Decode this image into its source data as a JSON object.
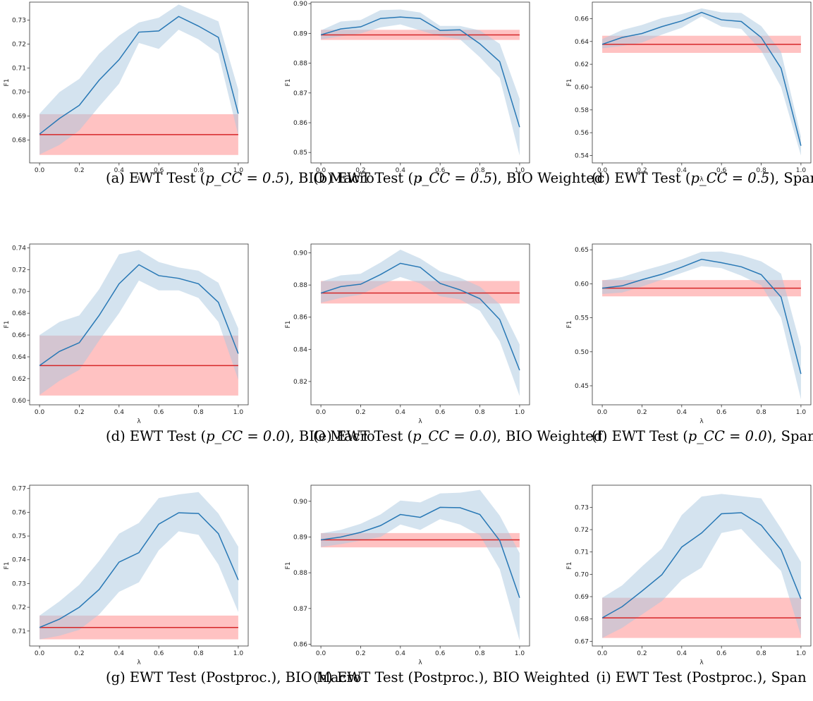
{
  "colors": {
    "series": "#2878b5",
    "band": "#a9c8e0",
    "baseline": "#d62728",
    "baseline_band": "#ff9a9a",
    "frame": "#333333"
  },
  "chart_data": [
    {
      "type": "line",
      "caption_prefix": "(a) EWT Test (",
      "caption_math": "p_CC = 0.5",
      "caption_suffix": "), BIO Macro",
      "xlabel": "λ",
      "ylabel": "F1",
      "xlim": [
        -0.05,
        1.05
      ],
      "ylim": [
        0.6705,
        0.7375
      ],
      "xticks": [
        0.0,
        0.2,
        0.4,
        0.6,
        0.8,
        1.0
      ],
      "xtick_labels": [
        "0.0",
        "0.2",
        "0.4",
        "0.6",
        "0.8",
        "1.0"
      ],
      "yticks": [
        0.68,
        0.69,
        0.7,
        0.71,
        0.72,
        0.73
      ],
      "ytick_labels": [
        "0.68",
        "0.69",
        "0.70",
        "0.71",
        "0.72",
        "0.73"
      ],
      "x": [
        0.0,
        0.1,
        0.2,
        0.3,
        0.4,
        0.5,
        0.6,
        0.7,
        0.8,
        0.9,
        1.0
      ],
      "y": [
        0.6825,
        0.689,
        0.6945,
        0.705,
        0.7135,
        0.725,
        0.7255,
        0.7315,
        0.7275,
        0.7228,
        0.691
      ],
      "y_lower": [
        0.674,
        0.678,
        0.684,
        0.694,
        0.7035,
        0.7205,
        0.718,
        0.726,
        0.722,
        0.716,
        0.682
      ],
      "y_upper": [
        0.691,
        0.7,
        0.7055,
        0.716,
        0.7235,
        0.729,
        0.731,
        0.7365,
        0.733,
        0.7295,
        0.701
      ],
      "baseline": 0.6823,
      "baseline_lower": 0.6738,
      "baseline_upper": 0.6908
    },
    {
      "type": "line",
      "caption_prefix": "(b) EWT Test (",
      "caption_math": "p_CC = 0.5",
      "caption_suffix": "), BIO Weighted",
      "xlabel": "λ",
      "ylabel": "F1",
      "xlim": [
        -0.05,
        1.05
      ],
      "ylim": [
        0.8465,
        0.9005
      ],
      "xticks": [
        0.0,
        0.2,
        0.4,
        0.6,
        0.8,
        1.0
      ],
      "xtick_labels": [
        "0.0",
        "0.2",
        "0.4",
        "0.6",
        "0.8",
        "1.0"
      ],
      "yticks": [
        0.85,
        0.86,
        0.87,
        0.88,
        0.89,
        0.9
      ],
      "ytick_labels": [
        "0.85",
        "0.86",
        "0.87",
        "0.88",
        "0.89",
        "0.90"
      ],
      "x": [
        0.0,
        0.1,
        0.2,
        0.3,
        0.4,
        0.5,
        0.6,
        0.7,
        0.8,
        0.9,
        1.0
      ],
      "y": [
        0.8895,
        0.8915,
        0.8922,
        0.895,
        0.8955,
        0.895,
        0.891,
        0.8912,
        0.8865,
        0.8805,
        0.8585
      ],
      "y_lower": [
        0.888,
        0.889,
        0.89,
        0.892,
        0.893,
        0.891,
        0.889,
        0.888,
        0.882,
        0.875,
        0.849
      ],
      "y_upper": [
        0.891,
        0.894,
        0.8945,
        0.8978,
        0.898,
        0.897,
        0.8925,
        0.8925,
        0.891,
        0.8865,
        0.868
      ],
      "baseline": 0.8895,
      "baseline_lower": 0.8878,
      "baseline_upper": 0.8912
    },
    {
      "type": "line",
      "caption_prefix": "(c) EWT Test (",
      "caption_math": "p_CC = 0.5",
      "caption_suffix": "), Span",
      "xlabel": "λ",
      "ylabel": "F1",
      "xlim": [
        -0.05,
        1.05
      ],
      "ylim": [
        0.5335,
        0.6745
      ],
      "xticks": [
        0.0,
        0.2,
        0.4,
        0.6,
        0.8,
        1.0
      ],
      "xtick_labels": [
        "0.0",
        "0.2",
        "0.4",
        "0.6",
        "0.8",
        "1.0"
      ],
      "yticks": [
        0.54,
        0.56,
        0.58,
        0.6,
        0.62,
        0.64,
        0.66
      ],
      "ytick_labels": [
        "0.54",
        "0.56",
        "0.58",
        "0.60",
        "0.62",
        "0.64",
        "0.66"
      ],
      "x": [
        0.0,
        0.1,
        0.2,
        0.3,
        0.4,
        0.5,
        0.6,
        0.7,
        0.8,
        0.9,
        1.0
      ],
      "y": [
        0.6375,
        0.6435,
        0.647,
        0.653,
        0.658,
        0.6655,
        0.659,
        0.6575,
        0.6435,
        0.6165,
        0.5485
      ],
      "y_lower": [
        0.634,
        0.636,
        0.639,
        0.646,
        0.652,
        0.662,
        0.653,
        0.651,
        0.632,
        0.6,
        0.54
      ],
      "y_upper": [
        0.642,
        0.65,
        0.6545,
        0.6605,
        0.664,
        0.669,
        0.6655,
        0.665,
        0.6535,
        0.631,
        0.5565
      ],
      "baseline": 0.6375,
      "baseline_lower": 0.63,
      "baseline_upper": 0.645
    },
    {
      "type": "line",
      "caption_prefix": "(d) EWT Test (",
      "caption_math": "p_CC = 0.0",
      "caption_suffix": "), BIO Macro",
      "xlabel": "λ",
      "ylabel": "F1",
      "xlim": [
        -0.05,
        1.05
      ],
      "ylim": [
        0.596,
        0.7435
      ],
      "xticks": [
        0.0,
        0.2,
        0.4,
        0.6,
        0.8,
        1.0
      ],
      "xtick_labels": [
        "0.0",
        "0.2",
        "0.4",
        "0.6",
        "0.8",
        "1.0"
      ],
      "yticks": [
        0.6,
        0.62,
        0.64,
        0.66,
        0.68,
        0.7,
        0.72,
        0.74
      ],
      "ytick_labels": [
        "0.60",
        "0.62",
        "0.64",
        "0.66",
        "0.68",
        "0.70",
        "0.72",
        "0.74"
      ],
      "x": [
        0.0,
        0.1,
        0.2,
        0.3,
        0.4,
        0.5,
        0.6,
        0.7,
        0.8,
        0.9,
        1.0
      ],
      "y": [
        0.632,
        0.645,
        0.653,
        0.678,
        0.707,
        0.7245,
        0.7145,
        0.712,
        0.707,
        0.69,
        0.643
      ],
      "y_lower": [
        0.605,
        0.618,
        0.628,
        0.655,
        0.68,
        0.71,
        0.701,
        0.701,
        0.694,
        0.672,
        0.619
      ],
      "y_upper": [
        0.66,
        0.672,
        0.678,
        0.702,
        0.734,
        0.738,
        0.727,
        0.722,
        0.719,
        0.708,
        0.666
      ],
      "baseline": 0.632,
      "baseline_lower": 0.6045,
      "baseline_upper": 0.6595
    },
    {
      "type": "line",
      "caption_prefix": "(e) EWT Test (",
      "caption_math": "p_CC = 0.0",
      "caption_suffix": "), BIO Weighted",
      "xlabel": "λ",
      "ylabel": "F1",
      "xlim": [
        -0.05,
        1.05
      ],
      "ylim": [
        0.8055,
        0.9055
      ],
      "xticks": [
        0.0,
        0.2,
        0.4,
        0.6,
        0.8,
        1.0
      ],
      "xtick_labels": [
        "0.0",
        "0.2",
        "0.4",
        "0.6",
        "0.8",
        "1.0"
      ],
      "yticks": [
        0.82,
        0.84,
        0.86,
        0.88,
        0.9
      ],
      "ytick_labels": [
        "0.82",
        "0.84",
        "0.86",
        "0.88",
        "0.90"
      ],
      "x": [
        0.0,
        0.1,
        0.2,
        0.3,
        0.4,
        0.5,
        0.6,
        0.7,
        0.8,
        0.9,
        1.0
      ],
      "y": [
        0.875,
        0.879,
        0.8805,
        0.8865,
        0.8935,
        0.891,
        0.881,
        0.877,
        0.8715,
        0.8585,
        0.827
      ],
      "y_lower": [
        0.869,
        0.872,
        0.874,
        0.88,
        0.885,
        0.881,
        0.873,
        0.871,
        0.864,
        0.845,
        0.811
      ],
      "y_upper": [
        0.882,
        0.886,
        0.887,
        0.894,
        0.902,
        0.8965,
        0.8885,
        0.8845,
        0.879,
        0.868,
        0.843
      ],
      "baseline": 0.875,
      "baseline_lower": 0.8685,
      "baseline_upper": 0.8825
    },
    {
      "type": "line",
      "caption_prefix": "(f) EWT Test (",
      "caption_math": "p_CC = 0.0",
      "caption_suffix": "), Span",
      "xlabel": "λ",
      "ylabel": "F1",
      "xlim": [
        -0.05,
        1.05
      ],
      "ylim": [
        0.422,
        0.6585
      ],
      "xticks": [
        0.0,
        0.2,
        0.4,
        0.6,
        0.8,
        1.0
      ],
      "xtick_labels": [
        "0.0",
        "0.2",
        "0.4",
        "0.6",
        "0.8",
        "1.0"
      ],
      "yticks": [
        0.45,
        0.5,
        0.55,
        0.6,
        0.65
      ],
      "ytick_labels": [
        "0.45",
        "0.50",
        "0.55",
        "0.60",
        "0.65"
      ],
      "x": [
        0.0,
        0.1,
        0.2,
        0.3,
        0.4,
        0.5,
        0.6,
        0.7,
        0.8,
        0.9,
        1.0
      ],
      "y": [
        0.5935,
        0.597,
        0.606,
        0.614,
        0.6245,
        0.636,
        0.631,
        0.625,
        0.6135,
        0.5805,
        0.4675
      ],
      "y_lower": [
        0.585,
        0.587,
        0.596,
        0.606,
        0.616,
        0.626,
        0.623,
        0.612,
        0.598,
        0.55,
        0.43
      ],
      "y_upper": [
        0.6045,
        0.61,
        0.619,
        0.627,
        0.636,
        0.647,
        0.6475,
        0.642,
        0.633,
        0.615,
        0.507
      ],
      "baseline": 0.5935,
      "baseline_lower": 0.5815,
      "baseline_upper": 0.6055
    },
    {
      "type": "line",
      "caption_prefix": "(g) EWT Test (Postproc.), BIO Macro",
      "caption_math": "",
      "caption_suffix": "",
      "xlabel": "λ",
      "ylabel": "F1",
      "xlim": [
        -0.05,
        1.05
      ],
      "ylim": [
        0.7037,
        0.7714
      ],
      "xticks": [
        0.0,
        0.2,
        0.4,
        0.6,
        0.8,
        1.0
      ],
      "xtick_labels": [
        "0.0",
        "0.2",
        "0.4",
        "0.6",
        "0.8",
        "1.0"
      ],
      "yticks": [
        0.71,
        0.72,
        0.73,
        0.74,
        0.75,
        0.76,
        0.77
      ],
      "ytick_labels": [
        "0.71",
        "0.72",
        "0.73",
        "0.74",
        "0.75",
        "0.76",
        "0.77"
      ],
      "x": [
        0.0,
        0.1,
        0.2,
        0.3,
        0.4,
        0.5,
        0.6,
        0.7,
        0.8,
        0.9,
        1.0
      ],
      "y": [
        0.7115,
        0.715,
        0.72,
        0.7275,
        0.739,
        0.743,
        0.755,
        0.7598,
        0.7595,
        0.751,
        0.7315
      ],
      "y_lower": [
        0.7065,
        0.708,
        0.7105,
        0.717,
        0.7265,
        0.7305,
        0.744,
        0.752,
        0.7505,
        0.738,
        0.718
      ],
      "y_upper": [
        0.7165,
        0.7225,
        0.7295,
        0.7395,
        0.751,
        0.7555,
        0.766,
        0.7675,
        0.7685,
        0.7595,
        0.7455
      ],
      "baseline": 0.7115,
      "baseline_lower": 0.7065,
      "baseline_upper": 0.7165
    },
    {
      "type": "line",
      "caption_prefix": "(h) EWT Test (Postproc.), BIO Weighted",
      "caption_math": "",
      "caption_suffix": "",
      "xlabel": "λ",
      "ylabel": "F1",
      "xlim": [
        -0.05,
        1.05
      ],
      "ylim": [
        0.8595,
        0.9045
      ],
      "xticks": [
        0.0,
        0.2,
        0.4,
        0.6,
        0.8,
        1.0
      ],
      "xtick_labels": [
        "0.0",
        "0.2",
        "0.4",
        "0.6",
        "0.8",
        "1.0"
      ],
      "yticks": [
        0.86,
        0.87,
        0.88,
        0.89,
        0.9
      ],
      "ytick_labels": [
        "0.86",
        "0.87",
        "0.88",
        "0.89",
        "0.90"
      ],
      "x": [
        0.0,
        0.1,
        0.2,
        0.3,
        0.4,
        0.5,
        0.6,
        0.7,
        0.8,
        0.9,
        1.0
      ],
      "y": [
        0.8892,
        0.89,
        0.8913,
        0.8932,
        0.8963,
        0.8955,
        0.8983,
        0.8982,
        0.8963,
        0.889,
        0.873
      ],
      "y_lower": [
        0.8872,
        0.888,
        0.889,
        0.89,
        0.8935,
        0.892,
        0.895,
        0.8935,
        0.8905,
        0.881,
        0.861
      ],
      "y_upper": [
        0.891,
        0.892,
        0.8937,
        0.8963,
        0.9002,
        0.8997,
        0.9022,
        0.9024,
        0.9032,
        0.896,
        0.8855
      ],
      "baseline": 0.8892,
      "baseline_lower": 0.8871,
      "baseline_upper": 0.8911
    },
    {
      "type": "line",
      "caption_prefix": "(i) EWT Test (Postproc.), Span",
      "caption_math": "",
      "caption_suffix": "",
      "xlabel": "λ",
      "ylabel": "F1",
      "xlim": [
        -0.05,
        1.05
      ],
      "ylim": [
        0.6679,
        0.7399
      ],
      "xticks": [
        0.0,
        0.2,
        0.4,
        0.6,
        0.8,
        1.0
      ],
      "xtick_labels": [
        "0.0",
        "0.2",
        "0.4",
        "0.6",
        "0.8",
        "1.0"
      ],
      "yticks": [
        0.67,
        0.68,
        0.69,
        0.7,
        0.71,
        0.72,
        0.73
      ],
      "ytick_labels": [
        "0.67",
        "0.68",
        "0.69",
        "0.70",
        "0.71",
        "0.72",
        "0.73"
      ],
      "x": [
        0.0,
        0.1,
        0.2,
        0.3,
        0.4,
        0.5,
        0.6,
        0.7,
        0.8,
        0.9,
        1.0
      ],
      "y": [
        0.6805,
        0.6855,
        0.6925,
        0.6998,
        0.7122,
        0.7185,
        0.7271,
        0.7276,
        0.722,
        0.711,
        0.689
      ],
      "y_lower": [
        0.6715,
        0.676,
        0.682,
        0.688,
        0.6975,
        0.703,
        0.7185,
        0.7203,
        0.7108,
        0.7015,
        0.6725
      ],
      "y_upper": [
        0.6895,
        0.695,
        0.7035,
        0.7115,
        0.7265,
        0.7348,
        0.736,
        0.735,
        0.734,
        0.7205,
        0.7055
      ],
      "baseline": 0.6805,
      "baseline_lower": 0.6715,
      "baseline_upper": 0.6895
    }
  ]
}
